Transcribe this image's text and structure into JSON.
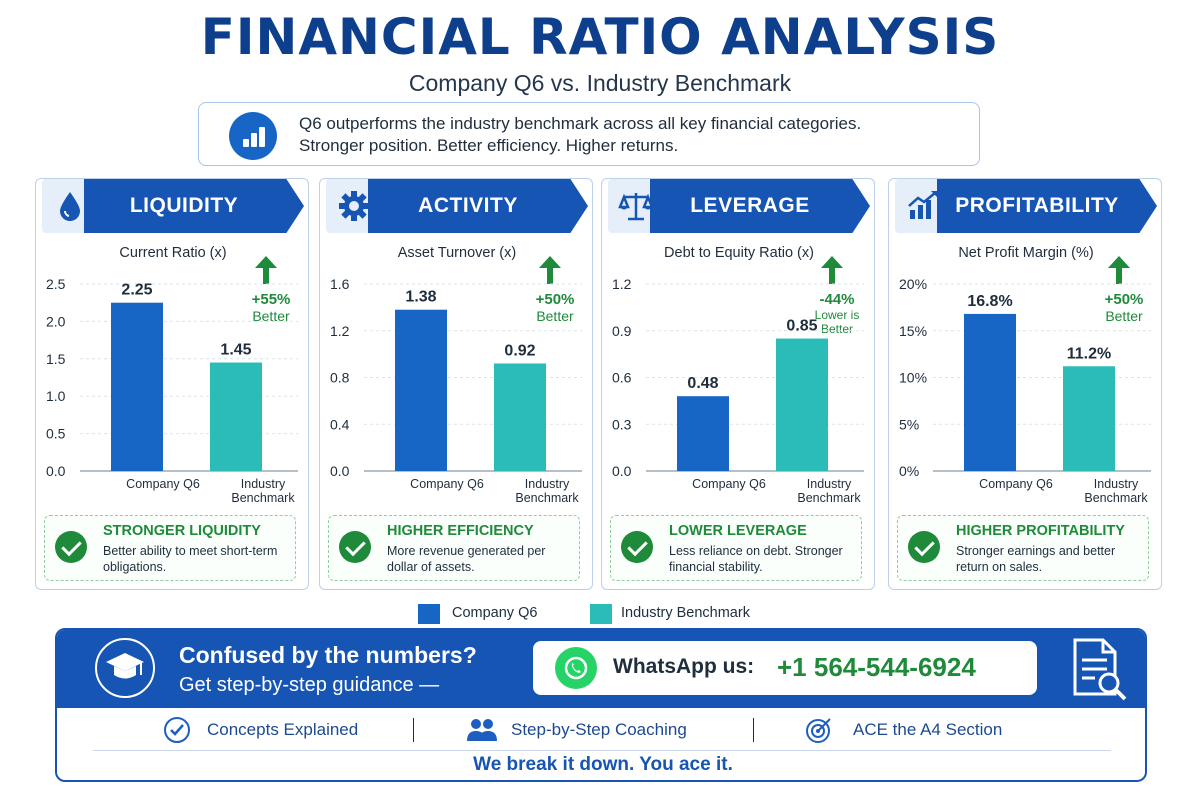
{
  "header": {
    "title": "FINANCIAL RATIO ANALYSIS",
    "subtitle": "Company Q6 vs. Industry Benchmark"
  },
  "summary": {
    "line1": "Q6 outperforms the industry benchmark across all key financial categories.",
    "line2": "Stronger position. Better efficiency. Higher returns."
  },
  "colors": {
    "company": "#1766c5",
    "benchmark": "#2bbcb8",
    "accent": "#1655b3",
    "positive": "#1f8a3a"
  },
  "chart_data": [
    {
      "type": "bar",
      "section": "LIQUIDITY",
      "icon": "droplet-icon",
      "title": "Current Ratio (x)",
      "categories": [
        "Company Q6",
        "Industry Benchmark"
      ],
      "values": [
        2.25,
        1.45
      ],
      "value_labels": [
        "2.25",
        "1.45"
      ],
      "yticks": [
        "0.0",
        "0.5",
        "1.0",
        "1.5",
        "2.0",
        "2.5"
      ],
      "ylim": [
        0,
        2.5
      ],
      "delta": "+55%",
      "delta_note": "Better",
      "delta_note_small": false,
      "insight_title": "STRONGER LIQUIDITY",
      "insight_text": "Better ability to meet short-term obligations."
    },
    {
      "type": "bar",
      "section": "ACTIVITY",
      "icon": "gear-icon",
      "title": "Asset Turnover (x)",
      "categories": [
        "Company Q6",
        "Industry Benchmark"
      ],
      "values": [
        1.38,
        0.92
      ],
      "value_labels": [
        "1.38",
        "0.92"
      ],
      "yticks": [
        "0.0",
        "0.4",
        "0.8",
        "1.2",
        "1.6"
      ],
      "ylim": [
        0,
        1.6
      ],
      "delta": "+50%",
      "delta_note": "Better",
      "delta_note_small": false,
      "insight_title": "HIGHER EFFICIENCY",
      "insight_text": "More revenue generated per dollar of assets."
    },
    {
      "type": "bar",
      "section": "LEVERAGE",
      "icon": "scale-icon",
      "title": "Debt to Equity Ratio (x)",
      "categories": [
        "Company Q6",
        "Industry Benchmark"
      ],
      "values": [
        0.48,
        0.85
      ],
      "value_labels": [
        "0.48",
        "0.85"
      ],
      "yticks": [
        "0.0",
        "0.3",
        "0.6",
        "0.9",
        "1.2"
      ],
      "ylim": [
        0,
        1.2
      ],
      "delta": "-44%",
      "delta_note": "Lower is Better",
      "delta_note_small": true,
      "insight_title": "LOWER LEVERAGE",
      "insight_text": "Less reliance on debt. Stronger financial stability."
    },
    {
      "type": "bar",
      "section": "PROFITABILITY",
      "icon": "growth-chart-icon",
      "title": "Net Profit Margin (%)",
      "categories": [
        "Company Q6",
        "Industry Benchmark"
      ],
      "values": [
        16.8,
        11.2
      ],
      "value_labels": [
        "16.8%",
        "11.2%"
      ],
      "yticks": [
        "0%",
        "5%",
        "10%",
        "15%",
        "20%"
      ],
      "ylim": [
        0,
        20
      ],
      "delta": "+50%",
      "delta_note": "Better",
      "delta_note_small": false,
      "insight_title": "HIGHER PROFITABILITY",
      "insight_text": "Stronger earnings and better return on sales."
    }
  ],
  "legend": {
    "company": "Company Q6",
    "benchmark": "Industry Benchmark"
  },
  "cta": {
    "question": "Confused by the numbers?",
    "guidance": "Get step-by-step guidance —",
    "whatsapp_label": "WhatsApp us:",
    "whatsapp_number": "+1 564-544-6924",
    "features": [
      "Concepts Explained",
      "Step-by-Step Coaching",
      "ACE the A4 Section"
    ],
    "tagline": "We break it down. You ace it."
  }
}
